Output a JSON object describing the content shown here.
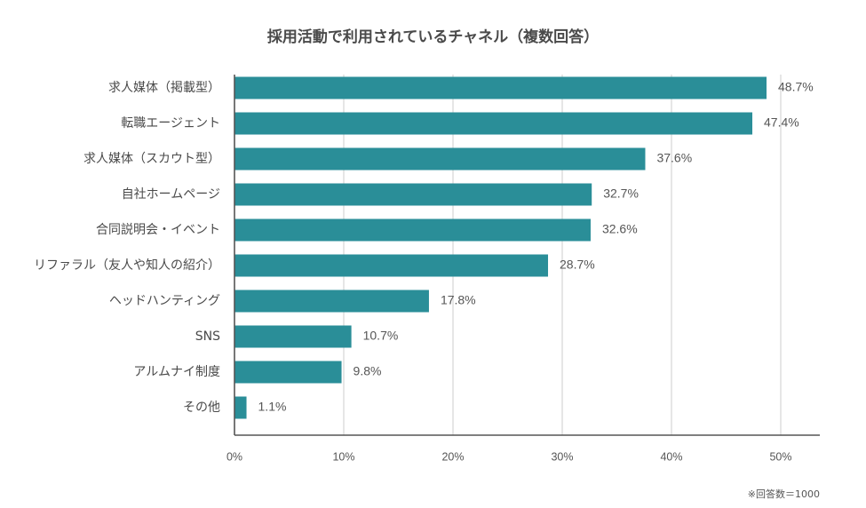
{
  "chart_data": {
    "type": "bar",
    "orientation": "horizontal",
    "title": "採用活動で利用されているチャネル（複数回答）",
    "categories": [
      "求人媒体（掲載型）",
      "転職エージェント",
      "求人媒体（スカウト型）",
      "自社ホームページ",
      "合同説明会・イベント",
      "リファラル（友人や知人の紹介）",
      "ヘッドハンティング",
      "SNS",
      "アルムナイ制度",
      "その他"
    ],
    "values": [
      48.7,
      47.4,
      37.6,
      32.7,
      32.6,
      28.7,
      17.8,
      10.7,
      9.8,
      1.1
    ],
    "value_labels": [
      "48.7%",
      "47.4%",
      "37.6%",
      "32.7%",
      "32.6%",
      "28.7%",
      "17.8%",
      "10.7%",
      "9.8%",
      "1.1%"
    ],
    "xlim": [
      0,
      50
    ],
    "xticks": [
      0,
      10,
      20,
      30,
      40,
      50
    ],
    "xtick_labels": [
      "0%",
      "10%",
      "20%",
      "30%",
      "40%",
      "50%"
    ],
    "grid": "vertical",
    "bar_color": "#2a8e98",
    "footnote": "※回答数＝1000"
  }
}
